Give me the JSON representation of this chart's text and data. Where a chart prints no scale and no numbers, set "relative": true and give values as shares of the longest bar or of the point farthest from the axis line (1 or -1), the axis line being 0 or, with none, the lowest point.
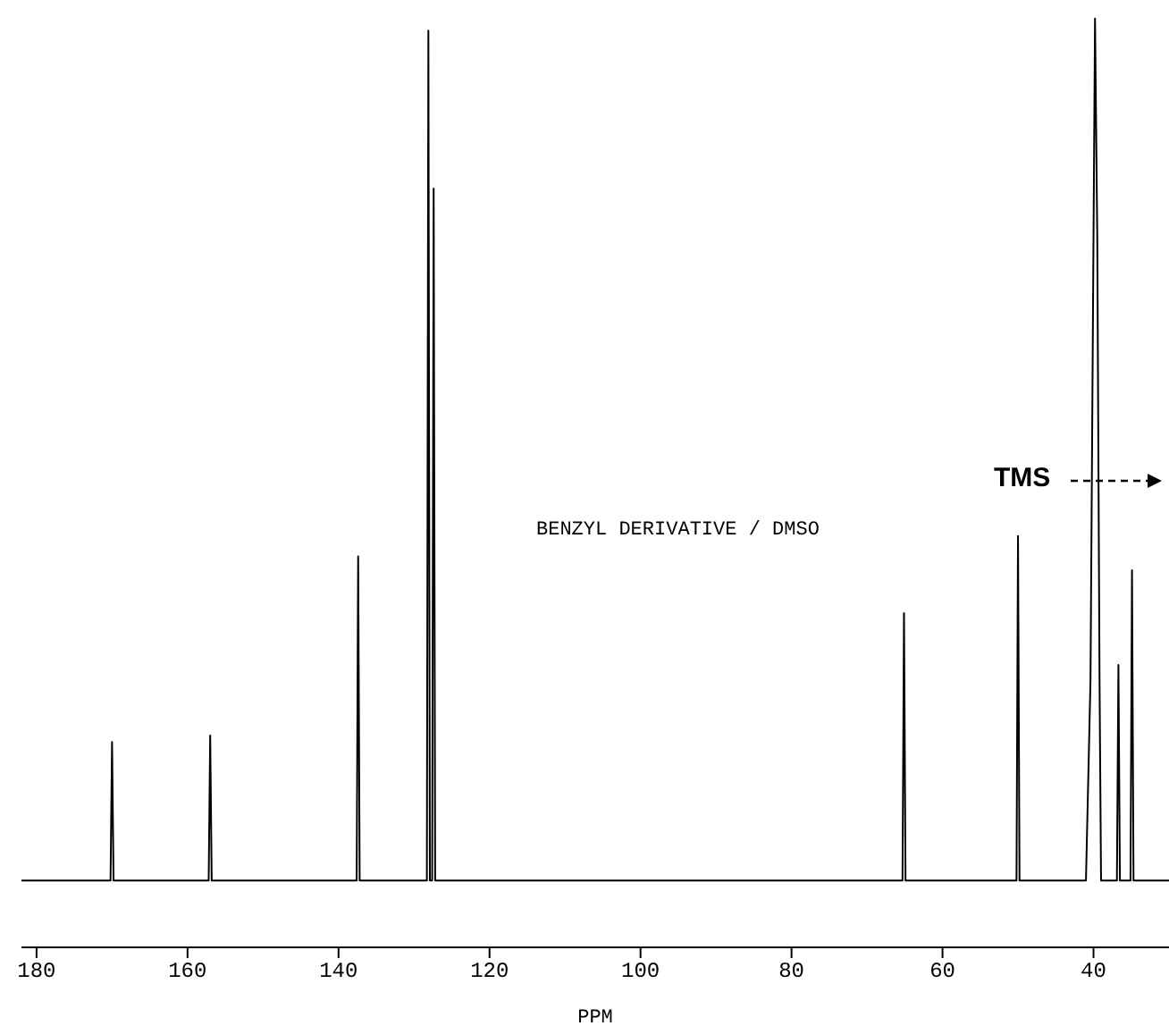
{
  "chart_data": {
    "type": "line",
    "relative": true,
    "xlabel": "PPM",
    "annotations": [
      "BENZYL DERIVATIVE / DMSO",
      "TMS"
    ],
    "x": [
      182,
      170.2,
      170,
      169.8,
      157.2,
      157,
      156.8,
      137.6,
      137.4,
      137.2,
      128.3,
      128.1,
      127.9,
      127.6,
      127.4,
      127.2,
      65.3,
      65.1,
      64.9,
      50.2,
      50,
      49.8,
      41,
      40.4,
      40,
      39.8,
      39.5,
      39.2,
      39,
      38.6,
      36.9,
      36.7,
      36.5,
      35.1,
      34.9,
      34.7,
      30
    ],
    "series": [
      {
        "color": "#000000",
        "values": [
          0.072,
          0.072,
          0.221,
          0.072,
          0.072,
          0.228,
          0.072,
          0.072,
          0.421,
          0.072,
          0.072,
          0.987,
          0.072,
          0.072,
          0.817,
          0.072,
          0.072,
          0.36,
          0.072,
          0.072,
          0.443,
          0.072,
          0.072,
          0.287,
          0.764,
          1,
          0.764,
          0.287,
          0.072,
          0.072,
          0.072,
          0.304,
          0.072,
          0.072,
          0.406,
          0.072,
          0.072
        ]
      }
    ],
    "xlim": [
      182,
      30
    ],
    "xticks": [
      180,
      160,
      140,
      120,
      100,
      80,
      60,
      40
    ],
    "tick_labels": "x",
    "marker": "none",
    "line_style": "solid"
  }
}
